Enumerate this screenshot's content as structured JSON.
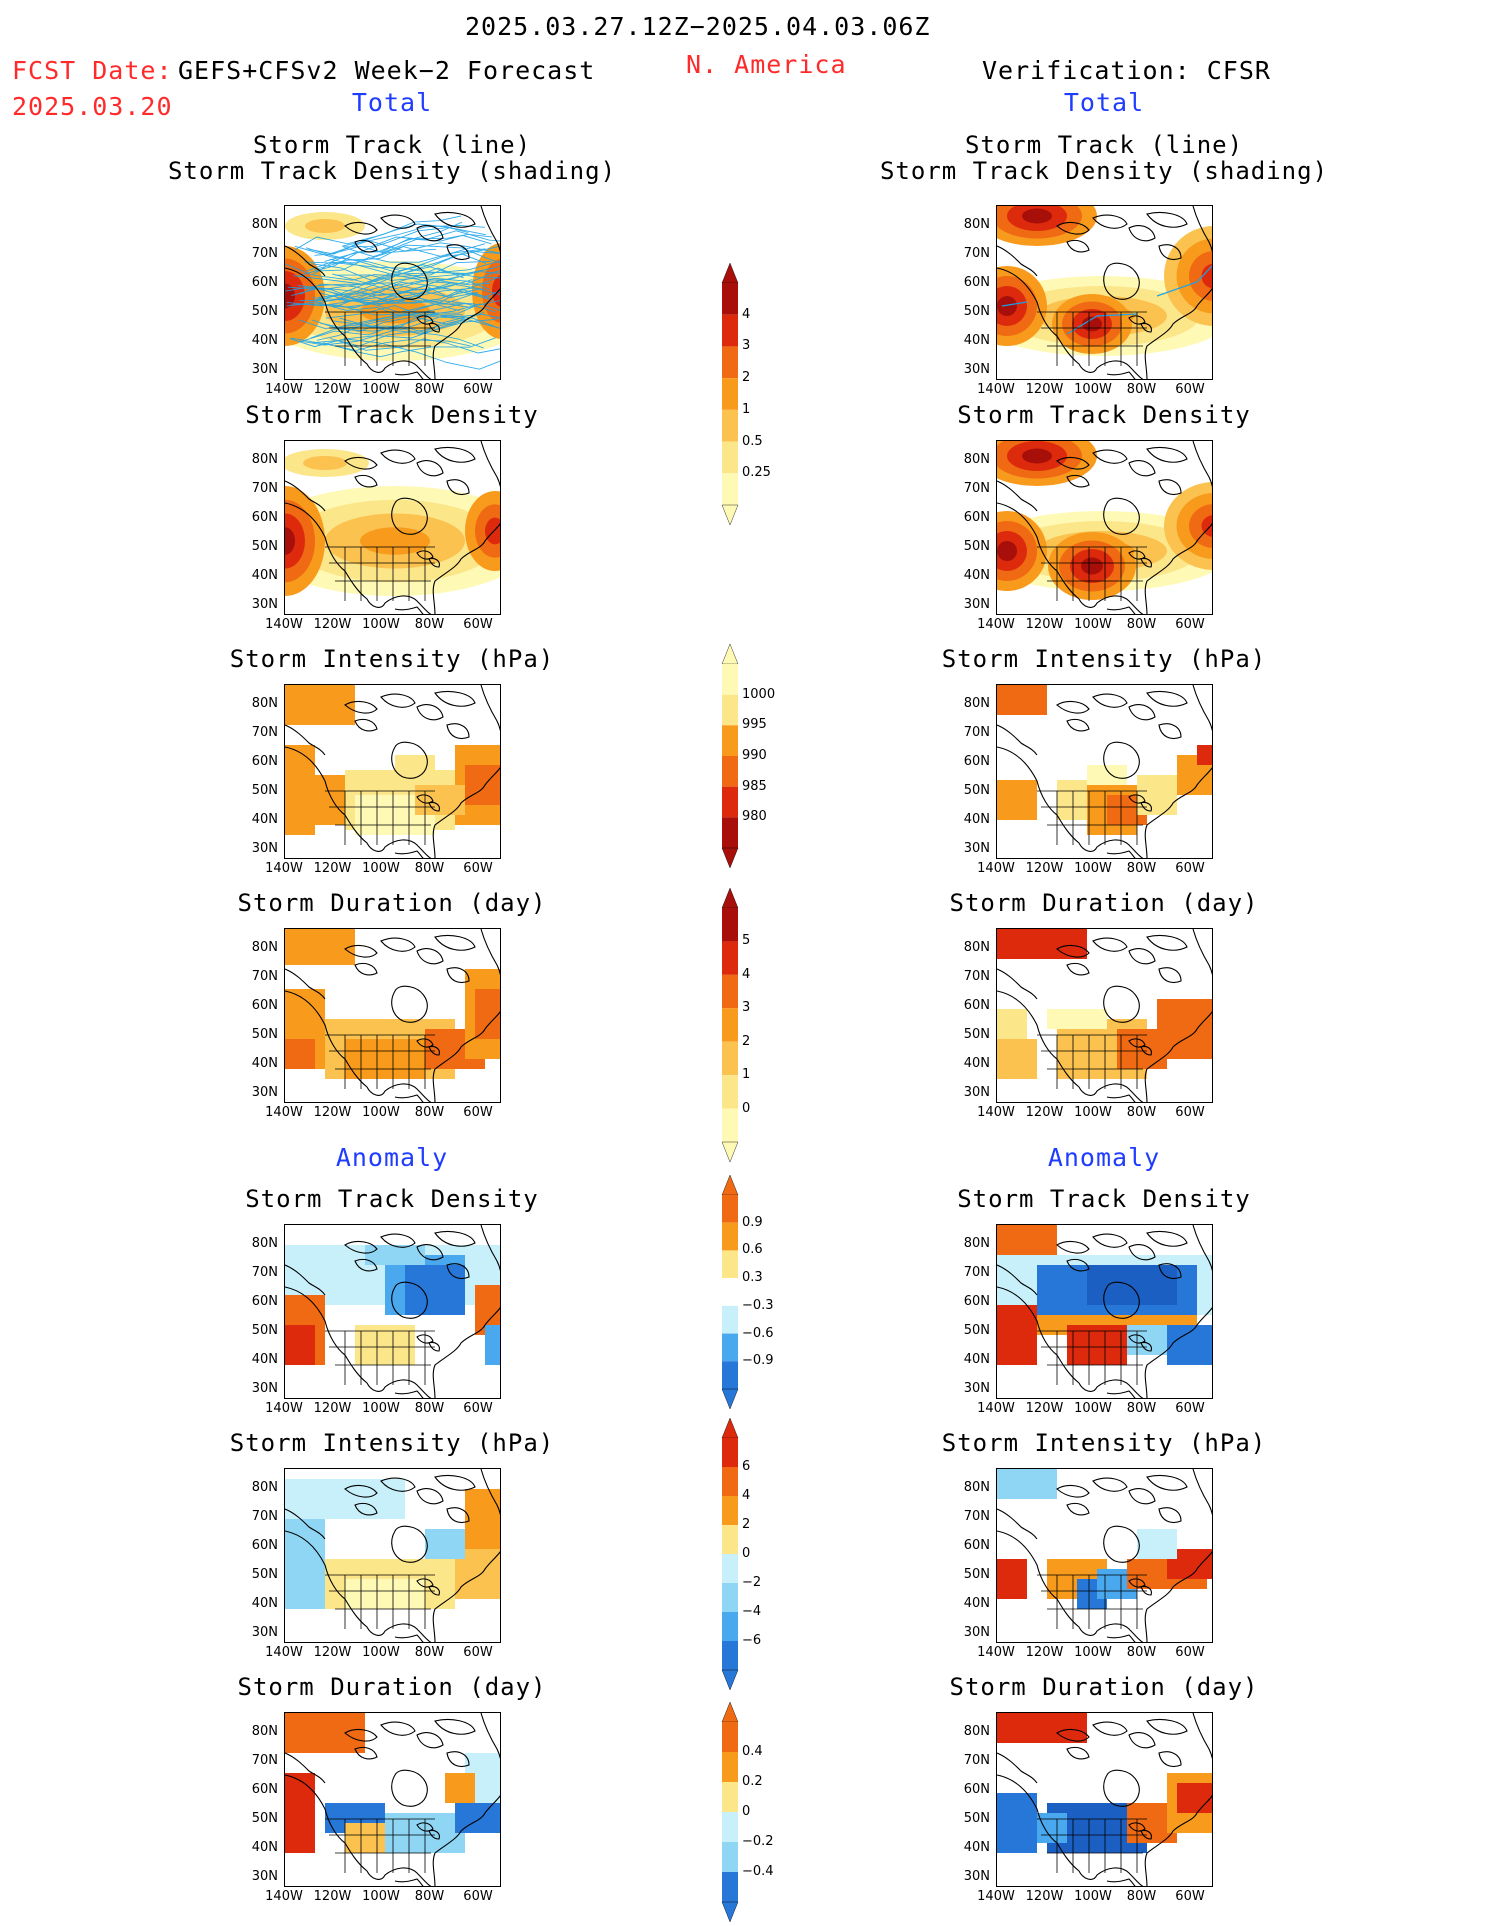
{
  "header": {
    "period": "2025.03.27.12Z−2025.04.03.06Z",
    "fcst_label": "FCST Date:",
    "fcst_date": "2025.03.20",
    "model": "GEFS+CFSv2 Week−2 Forecast",
    "region": "N. America",
    "verification": "Verification: CFSR"
  },
  "sections": {
    "total": "Total",
    "anomaly": "Anomaly"
  },
  "panel_titles": {
    "track_line": "Storm Track (line)",
    "track_shading": "Storm Track Density (shading)",
    "density": "Storm Track Density",
    "intensity": "Storm Intensity (hPa)",
    "duration": "Storm Duration (day)"
  },
  "axes": {
    "lat_labels": [
      "80N",
      "70N",
      "60N",
      "50N",
      "40N",
      "30N"
    ],
    "lon_labels": [
      "140W",
      "120W",
      "100W",
      "80W",
      "60W"
    ]
  },
  "colorbars": {
    "density_total": [
      "4",
      "3",
      "2",
      "1",
      "0.5",
      "0.25"
    ],
    "intensity_total": [
      "1000",
      "995",
      "990",
      "985",
      "980"
    ],
    "duration_total": [
      "5",
      "4",
      "3",
      "2",
      "1",
      "0"
    ],
    "density_anom": [
      "0.9",
      "0.6",
      "0.3",
      "−0.3",
      "−0.6",
      "−0.9"
    ],
    "intensity_anom": [
      "6",
      "4",
      "2",
      "0",
      "−2",
      "−4",
      "−6"
    ],
    "duration_anom": [
      "0.4",
      "0.2",
      "0",
      "−0.2",
      "−0.4"
    ]
  },
  "colors": {
    "header_red": "#ff2a2a",
    "section_blue": "#1f3cff",
    "track_line": "#1aa3e8",
    "scale_warm": [
      "#fff9b6",
      "#fce68a",
      "#fbc250",
      "#f89b1c",
      "#ef6a12",
      "#dd2a0c",
      "#a80f0a"
    ],
    "scale_cool": [
      "#c8f0fa",
      "#8ed6f4",
      "#4aa8ee",
      "#2677d8",
      "#1c5fc2"
    ]
  }
}
